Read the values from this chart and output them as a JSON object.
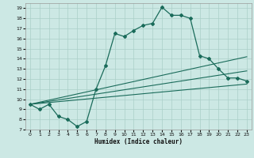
{
  "xlabel": "Humidex (Indice chaleur)",
  "xlim": [
    -0.5,
    23.5
  ],
  "ylim": [
    7,
    19.5
  ],
  "xticks": [
    0,
    1,
    2,
    3,
    4,
    5,
    6,
    7,
    8,
    9,
    10,
    11,
    12,
    13,
    14,
    15,
    16,
    17,
    18,
    19,
    20,
    21,
    22,
    23
  ],
  "yticks": [
    7,
    8,
    9,
    10,
    11,
    12,
    13,
    14,
    15,
    16,
    17,
    18,
    19
  ],
  "bg_color": "#cce8e4",
  "grid_color": "#aacfc8",
  "line_color": "#1a6b5a",
  "line1_x": [
    0,
    1,
    2,
    3,
    4,
    5,
    6,
    7,
    8,
    9,
    10,
    11,
    12,
    13,
    14,
    15,
    16,
    17,
    18,
    19,
    20,
    21,
    22,
    23
  ],
  "line1_y": [
    9.5,
    9.0,
    9.5,
    8.3,
    8.0,
    7.3,
    7.8,
    11.0,
    13.3,
    16.5,
    16.2,
    16.8,
    17.3,
    17.5,
    19.1,
    18.3,
    18.3,
    18.0,
    14.3,
    14.0,
    13.0,
    12.1,
    12.1,
    11.8
  ],
  "line2_x": [
    0,
    23
  ],
  "line2_y": [
    9.5,
    11.5
  ],
  "line3_x": [
    0,
    23
  ],
  "line3_y": [
    9.5,
    12.8
  ],
  "line4_x": [
    0,
    23
  ],
  "line4_y": [
    9.5,
    14.2
  ]
}
